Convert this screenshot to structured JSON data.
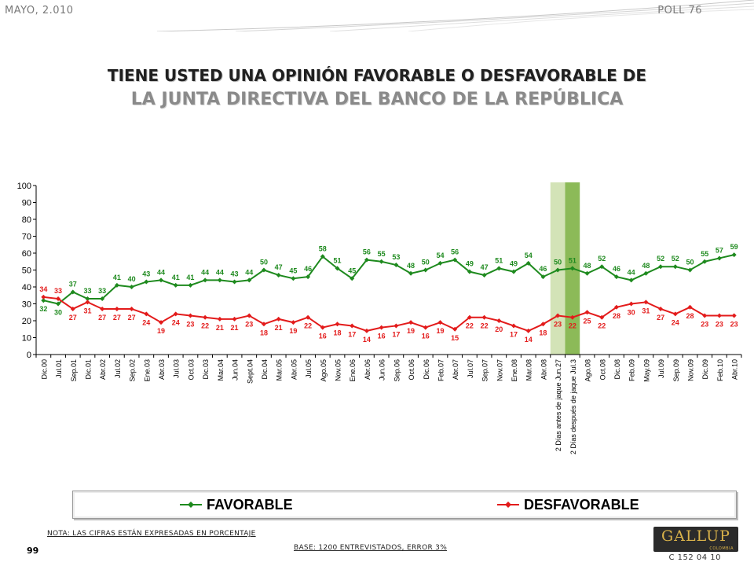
{
  "header": {
    "date": "MAYO, 2.010",
    "poll": "POLL 76"
  },
  "title": {
    "line1": "TIENE USTED UNA OPINIÓN FAVORABLE O DESFAVORABLE DE",
    "line2": "LA JUNTA DIRECTIVA DEL BANCO DE LA REPÚBLICA"
  },
  "legend": {
    "favorable": "FAVORABLE",
    "desfavorable": "DESFAVORABLE"
  },
  "footer": {
    "note": "NOTA: LAS CIFRAS ESTÁN EXPRESADAS EN PORCENTAJE",
    "base": "BASE: 1200 ENTREVISTADOS, ERROR 3%",
    "page": "99",
    "code": "C 152 04 10",
    "logo": "GALLUP",
    "logo_sub": "COLOMBIA"
  },
  "colors": {
    "favorable": "#1e8a1e",
    "desfavorable": "#e31b1b",
    "highlight_light": "#d3e3b7",
    "highlight_dark": "#8cba58"
  },
  "chart_data": {
    "type": "line",
    "ylim": [
      0,
      100
    ],
    "yticks": [
      0,
      10,
      20,
      30,
      40,
      50,
      60,
      70,
      80,
      90,
      100
    ],
    "grid": false,
    "legend_position": "bottom",
    "categories": [
      "Dic.00",
      "Jul.01",
      "Sep.01",
      "Dic.01",
      "Abr.02",
      "Jul.02",
      "Sep.02",
      "Ene.03",
      "Abr.03",
      "Jul.03",
      "Oct.03",
      "Dic.03",
      "Mar.04",
      "Jun.04",
      "Sept.04",
      "Dic.04",
      "Mar.05",
      "Abr.05",
      "Jul.05",
      "Ago.05",
      "Nov.05",
      "Ene.06",
      "Abr.06",
      "Jun.06",
      "Sep.06",
      "Oct.06",
      "Dic.06",
      "Feb.07",
      "Abr.07",
      "Jul.07",
      "Sep.07",
      "Nov.07",
      "Ene.08",
      "Mar.08",
      "Abr.08",
      "2 Días antes de jaque Jun.27",
      "2 Días después de jaque Jul.3",
      "Ago.08",
      "Oct.08",
      "Dic.08",
      "Feb.09",
      "May.09",
      "Jul.09",
      "Sep.09",
      "Nov.09",
      "Dic.09",
      "Feb.10",
      "Abr.10"
    ],
    "highlight_bands": [
      35,
      36
    ],
    "series": [
      {
        "name": "FAVORABLE",
        "values": [
          32,
          30,
          37,
          33,
          33,
          41,
          40,
          43,
          44,
          41,
          41,
          44,
          44,
          43,
          44,
          50,
          47,
          45,
          46,
          58,
          51,
          45,
          56,
          55,
          53,
          48,
          50,
          54,
          56,
          49,
          47,
          51,
          49,
          54,
          46,
          50,
          51,
          48,
          52,
          46,
          44,
          48,
          52,
          52,
          50,
          55,
          57,
          59
        ]
      },
      {
        "name": "DESFAVORABLE",
        "values": [
          34,
          33,
          27,
          31,
          27,
          27,
          27,
          24,
          19,
          24,
          23,
          22,
          21,
          21,
          23,
          18,
          21,
          19,
          22,
          16,
          18,
          17,
          14,
          16,
          17,
          19,
          16,
          19,
          15,
          22,
          22,
          20,
          17,
          14,
          18,
          23,
          22,
          25,
          22,
          28,
          30,
          31,
          27,
          24,
          28,
          23,
          23,
          23
        ]
      }
    ]
  }
}
